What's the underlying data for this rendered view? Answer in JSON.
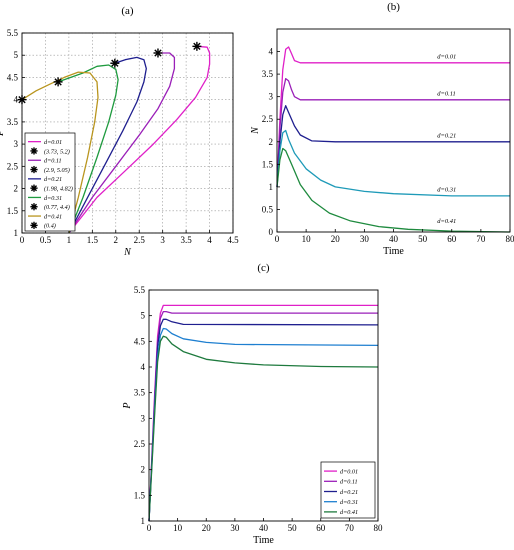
{
  "chart_data": [
    {
      "id": "a",
      "panel_label": "(a)",
      "type": "line",
      "xlabel": "N",
      "ylabel": "P",
      "xlim": [
        0,
        4.5
      ],
      "ylim": [
        1,
        5.5
      ],
      "xticks": [
        0,
        0.5,
        1,
        1.5,
        2,
        2.5,
        3,
        3.5,
        4,
        4.5
      ],
      "xtick_labels": [
        "0",
        "0.5",
        "1",
        "1.5",
        "2",
        "2.5",
        "3",
        "3.5",
        "4",
        "4.5"
      ],
      "yticks": [
        1,
        1.5,
        2,
        2.5,
        3,
        3.5,
        4,
        4.5,
        5,
        5.5
      ],
      "ytick_labels": [
        "1",
        "1.5",
        "2",
        "2.5",
        "3",
        "3.5",
        "4",
        "4.5",
        "5",
        "5.5"
      ],
      "grid": true,
      "legend_position": "bottom-left",
      "legend": [
        {
          "label": "d=0.01",
          "kind": "line",
          "color": "#e020c8"
        },
        {
          "label": "(3.73, 5.2)",
          "kind": "star"
        },
        {
          "label": "d=0.11",
          "kind": "line",
          "color": "#9a1fb8"
        },
        {
          "label": "(2.9, 5.05)",
          "kind": "star"
        },
        {
          "label": "d=0.21",
          "kind": "line",
          "color": "#1f1f8f"
        },
        {
          "label": "(1.98, 4.82)",
          "kind": "star"
        },
        {
          "label": "d=0.31",
          "kind": "line",
          "color": "#1e9a3e"
        },
        {
          "label": "(0.77, 4.4)",
          "kind": "star"
        },
        {
          "label": "d=0.41",
          "kind": "line",
          "color": "#b9951e"
        },
        {
          "label": "(0.4)",
          "kind": "star"
        }
      ],
      "series": [
        {
          "name": "d=0.01",
          "color": "#e020c8",
          "points": [
            [
              1.0,
              1.0
            ],
            [
              1.6,
              1.8
            ],
            [
              2.2,
              2.4
            ],
            [
              2.8,
              3.0
            ],
            [
              3.3,
              3.55
            ],
            [
              3.7,
              4.05
            ],
            [
              3.95,
              4.5
            ],
            [
              4.0,
              4.8
            ],
            [
              4.0,
              5.05
            ],
            [
              3.95,
              5.18
            ],
            [
              3.73,
              5.2
            ]
          ]
        },
        {
          "name": "d=0.11",
          "color": "#9a1fb8",
          "points": [
            [
              1.0,
              1.0
            ],
            [
              1.5,
              1.8
            ],
            [
              2.0,
              2.5
            ],
            [
              2.5,
              3.2
            ],
            [
              2.9,
              3.8
            ],
            [
              3.15,
              4.3
            ],
            [
              3.25,
              4.7
            ],
            [
              3.25,
              4.95
            ],
            [
              3.15,
              5.05
            ],
            [
              2.9,
              5.05
            ]
          ]
        },
        {
          "name": "d=0.21",
          "color": "#1f1f8f",
          "points": [
            [
              1.0,
              1.0
            ],
            [
              1.4,
              1.8
            ],
            [
              1.8,
              2.6
            ],
            [
              2.15,
              3.3
            ],
            [
              2.45,
              3.95
            ],
            [
              2.6,
              4.4
            ],
            [
              2.65,
              4.7
            ],
            [
              2.6,
              4.9
            ],
            [
              2.45,
              4.95
            ],
            [
              2.2,
              4.9
            ],
            [
              1.98,
              4.82
            ]
          ]
        },
        {
          "name": "d=0.31",
          "color": "#1e9a3e",
          "points": [
            [
              1.0,
              1.0
            ],
            [
              1.3,
              1.8
            ],
            [
              1.6,
              2.7
            ],
            [
              1.85,
              3.5
            ],
            [
              2.0,
              4.1
            ],
            [
              2.05,
              4.45
            ],
            [
              2.0,
              4.68
            ],
            [
              1.85,
              4.78
            ],
            [
              1.6,
              4.75
            ],
            [
              1.3,
              4.6
            ],
            [
              0.77,
              4.4
            ]
          ]
        },
        {
          "name": "d=0.41",
          "color": "#b9951e",
          "points": [
            [
              1.0,
              1.0
            ],
            [
              1.2,
              1.8
            ],
            [
              1.4,
              2.7
            ],
            [
              1.55,
              3.5
            ],
            [
              1.62,
              4.05
            ],
            [
              1.6,
              4.4
            ],
            [
              1.45,
              4.6
            ],
            [
              1.2,
              4.62
            ],
            [
              0.9,
              4.5
            ],
            [
              0.6,
              4.35
            ],
            [
              0.3,
              4.2
            ],
            [
              0.0,
              4.0
            ]
          ]
        }
      ],
      "star_points": [
        [
          3.73,
          5.2
        ],
        [
          2.9,
          5.05
        ],
        [
          1.98,
          4.82
        ],
        [
          0.77,
          4.4
        ],
        [
          0.0,
          4.0
        ]
      ]
    },
    {
      "id": "b",
      "panel_label": "(b)",
      "type": "line",
      "xlabel": "Time",
      "ylabel": "N",
      "xlim": [
        0,
        80
      ],
      "ylim": [
        0,
        4.5
      ],
      "xticks": [
        0,
        10,
        20,
        30,
        40,
        50,
        60,
        70,
        80
      ],
      "xtick_labels": [
        "0",
        "10",
        "20",
        "30",
        "40",
        "50",
        "60",
        "70",
        "80"
      ],
      "yticks": [
        0,
        0.5,
        1,
        1.5,
        2,
        2.5,
        3,
        3.5,
        4
      ],
      "ytick_labels": [
        "0",
        "0.5",
        "1",
        "1.5",
        "2",
        "2.5",
        "3",
        "3.5",
        "4"
      ],
      "grid": false,
      "annotations": [
        {
          "text": "d=0.01",
          "x": 55,
          "y": 3.85
        },
        {
          "text": "d=0.11",
          "x": 55,
          "y": 3.03
        },
        {
          "text": "d=0.21",
          "x": 55,
          "y": 2.1
        },
        {
          "text": "d=0.31",
          "x": 55,
          "y": 0.9
        },
        {
          "text": "d=0.41",
          "x": 55,
          "y": 0.2
        }
      ],
      "series": [
        {
          "name": "d=0.01",
          "color": "#e020c8",
          "points": [
            [
              0,
              1.0
            ],
            [
              1,
              2.5
            ],
            [
              2,
              3.6
            ],
            [
              3,
              4.05
            ],
            [
              4,
              4.1
            ],
            [
              5,
              3.95
            ],
            [
              6,
              3.8
            ],
            [
              8,
              3.75
            ],
            [
              80,
              3.75
            ]
          ]
        },
        {
          "name": "d=0.11",
          "color": "#9a1fb8",
          "points": [
            [
              0,
              1.0
            ],
            [
              1,
              2.3
            ],
            [
              2,
              3.1
            ],
            [
              3,
              3.4
            ],
            [
              4,
              3.35
            ],
            [
              5,
              3.15
            ],
            [
              6,
              3.0
            ],
            [
              8,
              2.93
            ],
            [
              80,
              2.93
            ]
          ]
        },
        {
          "name": "d=0.21",
          "color": "#1f1f8f",
          "points": [
            [
              0,
              1.0
            ],
            [
              1,
              2.0
            ],
            [
              2,
              2.6
            ],
            [
              3,
              2.8
            ],
            [
              4,
              2.65
            ],
            [
              6,
              2.35
            ],
            [
              8,
              2.15
            ],
            [
              12,
              2.02
            ],
            [
              20,
              2.0
            ],
            [
              80,
              2.0
            ]
          ]
        },
        {
          "name": "d=0.31",
          "color": "#1e9ab8",
          "points": [
            [
              0,
              1.0
            ],
            [
              1,
              1.8
            ],
            [
              2,
              2.2
            ],
            [
              3,
              2.25
            ],
            [
              4,
              2.05
            ],
            [
              6,
              1.75
            ],
            [
              10,
              1.4
            ],
            [
              15,
              1.15
            ],
            [
              20,
              1.0
            ],
            [
              30,
              0.9
            ],
            [
              40,
              0.85
            ],
            [
              60,
              0.8
            ],
            [
              80,
              0.8
            ]
          ]
        },
        {
          "name": "d=0.41",
          "color": "#1e8a3e",
          "points": [
            [
              0,
              1.0
            ],
            [
              1,
              1.6
            ],
            [
              2,
              1.85
            ],
            [
              3,
              1.8
            ],
            [
              5,
              1.5
            ],
            [
              8,
              1.05
            ],
            [
              12,
              0.7
            ],
            [
              18,
              0.42
            ],
            [
              25,
              0.25
            ],
            [
              35,
              0.12
            ],
            [
              45,
              0.06
            ],
            [
              60,
              0.02
            ],
            [
              80,
              0.0
            ]
          ]
        }
      ]
    },
    {
      "id": "c",
      "panel_label": "(c)",
      "type": "line",
      "xlabel": "Time",
      "ylabel": "P",
      "xlim": [
        0,
        80
      ],
      "ylim": [
        1,
        5.5
      ],
      "xticks": [
        0,
        10,
        20,
        30,
        40,
        50,
        60,
        70,
        80
      ],
      "xtick_labels": [
        "0",
        "10",
        "20",
        "30",
        "40",
        "50",
        "60",
        "70",
        "80"
      ],
      "yticks": [
        1,
        1.5,
        2,
        2.5,
        3,
        3.5,
        4,
        4.5,
        5,
        5.5
      ],
      "ytick_labels": [
        "1",
        "1.5",
        "2",
        "2.5",
        "3",
        "3.5",
        "4",
        "4.5",
        "5",
        "5.5"
      ],
      "grid": false,
      "legend_position": "bottom-right",
      "legend": [
        {
          "label": "d=0.01",
          "kind": "line",
          "color": "#e020c8"
        },
        {
          "label": "d=0.11",
          "kind": "line",
          "color": "#9a1fb8"
        },
        {
          "label": "d=0.21",
          "kind": "line",
          "color": "#1f1f8f"
        },
        {
          "label": "d=0.31",
          "kind": "line",
          "color": "#1e7fd0"
        },
        {
          "label": "d=0.41",
          "kind": "line",
          "color": "#1e7a3e"
        }
      ],
      "series": [
        {
          "name": "d=0.01",
          "color": "#e020c8",
          "points": [
            [
              0,
              1.0
            ],
            [
              2,
              3.5
            ],
            [
              3,
              4.6
            ],
            [
              4,
              5.05
            ],
            [
              5,
              5.2
            ],
            [
              6,
              5.2
            ],
            [
              80,
              5.2
            ]
          ]
        },
        {
          "name": "d=0.11",
          "color": "#9a1fb8",
          "points": [
            [
              0,
              1.0
            ],
            [
              2,
              3.4
            ],
            [
              3,
              4.5
            ],
            [
              4,
              4.95
            ],
            [
              5,
              5.08
            ],
            [
              6,
              5.08
            ],
            [
              8,
              5.05
            ],
            [
              80,
              5.05
            ]
          ]
        },
        {
          "name": "d=0.21",
          "color": "#1f1f8f",
          "points": [
            [
              0,
              1.0
            ],
            [
              2,
              3.3
            ],
            [
              3,
              4.4
            ],
            [
              4,
              4.8
            ],
            [
              5,
              4.93
            ],
            [
              6,
              4.93
            ],
            [
              8,
              4.88
            ],
            [
              12,
              4.83
            ],
            [
              80,
              4.82
            ]
          ]
        },
        {
          "name": "d=0.31",
          "color": "#1e7fd0",
          "points": [
            [
              0,
              1.0
            ],
            [
              2,
              3.2
            ],
            [
              3,
              4.2
            ],
            [
              4,
              4.62
            ],
            [
              5,
              4.75
            ],
            [
              6,
              4.74
            ],
            [
              8,
              4.65
            ],
            [
              12,
              4.55
            ],
            [
              20,
              4.48
            ],
            [
              30,
              4.44
            ],
            [
              80,
              4.42
            ]
          ]
        },
        {
          "name": "d=0.41",
          "color": "#1e7a3e",
          "points": [
            [
              0,
              1.0
            ],
            [
              2,
              3.1
            ],
            [
              3,
              4.1
            ],
            [
              4,
              4.5
            ],
            [
              5,
              4.6
            ],
            [
              6,
              4.58
            ],
            [
              8,
              4.45
            ],
            [
              12,
              4.3
            ],
            [
              20,
              4.15
            ],
            [
              30,
              4.08
            ],
            [
              40,
              4.04
            ],
            [
              60,
              4.01
            ],
            [
              80,
              4.0
            ]
          ]
        }
      ]
    }
  ]
}
